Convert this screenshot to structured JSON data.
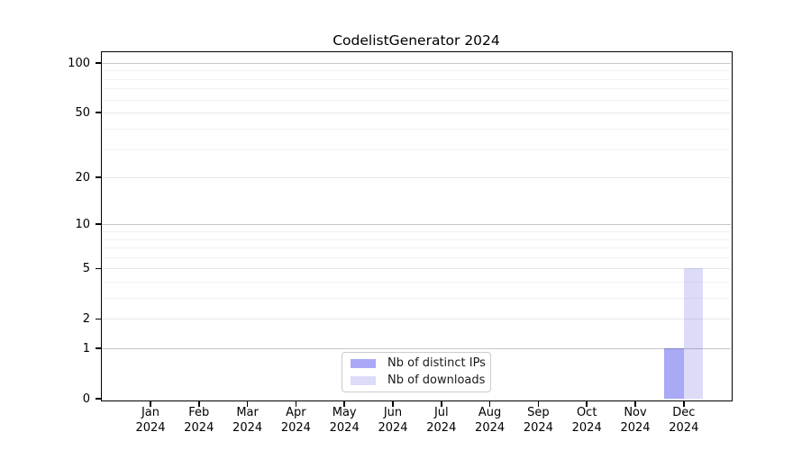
{
  "chart_data": {
    "type": "bar",
    "title": "CodelistGenerator 2024",
    "scale": "log1p",
    "grid": true,
    "legend": {
      "position": "lower center"
    },
    "ylim": [
      0,
      100
    ],
    "categories": [
      {
        "month": "Jan",
        "year": "2024"
      },
      {
        "month": "Feb",
        "year": "2024"
      },
      {
        "month": "Mar",
        "year": "2024"
      },
      {
        "month": "Apr",
        "year": "2024"
      },
      {
        "month": "May",
        "year": "2024"
      },
      {
        "month": "Jun",
        "year": "2024"
      },
      {
        "month": "Jul",
        "year": "2024"
      },
      {
        "month": "Aug",
        "year": "2024"
      },
      {
        "month": "Sep",
        "year": "2024"
      },
      {
        "month": "Oct",
        "year": "2024"
      },
      {
        "month": "Nov",
        "year": "2024"
      },
      {
        "month": "Dec",
        "year": "2024"
      }
    ],
    "series": [
      {
        "key": "distinct-ips",
        "name": "Nb of distinct IPs",
        "color": "#a9a9f6",
        "values": [
          0,
          0,
          0,
          0,
          0,
          0,
          0,
          0,
          0,
          0,
          0,
          1
        ]
      },
      {
        "key": "downloads",
        "name": "Nb of downloads",
        "color": "#dcdcf8",
        "values": [
          0,
          0,
          0,
          0,
          0,
          0,
          0,
          0,
          0,
          0,
          0,
          5
        ]
      }
    ],
    "y_axis": {
      "major_ticks": [
        0,
        1,
        2,
        5,
        10,
        20,
        50,
        100
      ],
      "minor_ticks": [
        3,
        4,
        6,
        7,
        8,
        9,
        30,
        40,
        60,
        70,
        80,
        90
      ],
      "decade_ticks": [
        1,
        10,
        100
      ]
    }
  }
}
